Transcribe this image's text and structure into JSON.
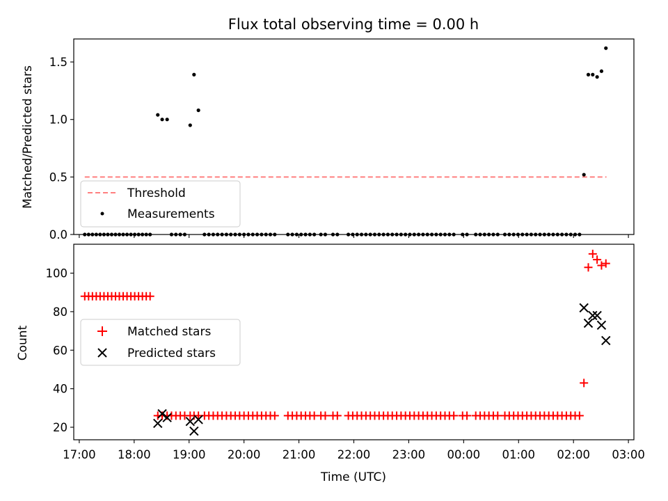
{
  "chart_data": [
    {
      "type": "scatter",
      "title": "Flux total observing time = 0.00 h",
      "xlabel": "",
      "ylabel": "Matched/Predicted stars",
      "xlim": [
        16.9,
        27.1
      ],
      "ylim": [
        0,
        1.7
      ],
      "yticks": [
        0.0,
        0.5,
        1.0,
        1.5
      ],
      "ytick_labels": [
        "0.0",
        "0.5",
        "1.0",
        "1.5"
      ],
      "legend_position": "lower-left",
      "series": [
        {
          "name": "Threshold",
          "kind": "dashed-line",
          "color": "#ff7f7f",
          "x": [
            17.1,
            26.6
          ],
          "y": [
            0.5,
            0.5
          ]
        },
        {
          "name": "Measurements",
          "kind": "points",
          "color": "#000000",
          "x": [
            17.1,
            17.17,
            17.24,
            17.31,
            17.38,
            17.45,
            17.52,
            17.59,
            17.66,
            17.73,
            17.8,
            17.87,
            17.94,
            18.01,
            18.08,
            18.15,
            18.22,
            18.29,
            18.43,
            18.51,
            18.6,
            18.68,
            18.76,
            18.84,
            18.92,
            19.02,
            19.09,
            19.17,
            19.28,
            19.36,
            19.44,
            19.52,
            19.6,
            19.68,
            19.76,
            19.84,
            19.92,
            20.0,
            20.08,
            20.16,
            20.24,
            20.32,
            20.4,
            20.48,
            20.56,
            20.8,
            20.88,
            20.96,
            21.04,
            21.12,
            21.2,
            21.28,
            21.4,
            21.48,
            21.62,
            21.7,
            21.9,
            21.98,
            22.06,
            22.14,
            22.22,
            22.3,
            22.38,
            22.46,
            22.54,
            22.62,
            22.7,
            22.78,
            22.86,
            22.94,
            23.02,
            23.1,
            23.18,
            23.26,
            23.34,
            23.42,
            23.5,
            23.58,
            23.66,
            23.74,
            23.82,
            23.98,
            24.06,
            24.22,
            24.3,
            24.38,
            24.46,
            24.54,
            24.62,
            24.75,
            24.83,
            24.91,
            24.99,
            25.07,
            25.15,
            25.23,
            25.31,
            25.39,
            25.47,
            25.55,
            25.63,
            25.71,
            25.79,
            25.87,
            25.95,
            26.03,
            26.11,
            26.19,
            26.27,
            26.35,
            26.43,
            26.51,
            26.59
          ],
          "y": [
            0,
            0,
            0,
            0,
            0,
            0,
            0,
            0,
            0,
            0,
            0,
            0,
            0,
            0,
            0,
            0,
            0,
            0,
            1.04,
            1.0,
            1.0,
            0,
            0,
            0,
            0,
            0.95,
            1.39,
            1.08,
            0,
            0,
            0,
            0,
            0,
            0,
            0,
            0,
            0,
            0,
            0,
            0,
            0,
            0,
            0,
            0,
            0,
            0,
            0,
            0,
            0,
            0,
            0,
            0,
            0,
            0,
            0,
            0,
            0,
            0,
            0,
            0,
            0,
            0,
            0,
            0,
            0,
            0,
            0,
            0,
            0,
            0,
            0,
            0,
            0,
            0,
            0,
            0,
            0,
            0,
            0,
            0,
            0,
            0,
            0,
            0,
            0,
            0,
            0,
            0,
            0,
            0,
            0,
            0,
            0,
            0,
            0,
            0,
            0,
            0,
            0,
            0,
            0,
            0,
            0,
            0,
            0,
            0,
            0,
            0.52,
            1.39,
            1.39,
            1.37,
            1.42,
            1.62
          ]
        }
      ]
    },
    {
      "type": "scatter",
      "title": "",
      "xlabel": "Time (UTC)",
      "ylabel": "Count",
      "xlim": [
        16.9,
        27.1
      ],
      "ylim": [
        13.5,
        115
      ],
      "yticks": [
        20,
        40,
        60,
        80,
        100
      ],
      "ytick_labels": [
        "20",
        "40",
        "60",
        "80",
        "100"
      ],
      "xticks": [
        17,
        18,
        19,
        20,
        21,
        22,
        23,
        24,
        25,
        26,
        27
      ],
      "xtick_labels": [
        "17:00",
        "18:00",
        "19:00",
        "20:00",
        "21:00",
        "22:00",
        "23:00",
        "00:00",
        "01:00",
        "02:00",
        "03:00"
      ],
      "legend_position": "center-left",
      "series": [
        {
          "name": "Matched stars",
          "marker": "plus",
          "color": "#ff0000",
          "x": [
            17.1,
            17.17,
            17.24,
            17.31,
            17.38,
            17.45,
            17.52,
            17.59,
            17.66,
            17.73,
            17.8,
            17.87,
            17.94,
            18.01,
            18.08,
            18.15,
            18.22,
            18.29,
            18.43,
            18.51,
            18.6,
            18.68,
            18.76,
            18.84,
            18.92,
            19.02,
            19.09,
            19.17,
            19.28,
            19.36,
            19.44,
            19.52,
            19.6,
            19.68,
            19.76,
            19.84,
            19.92,
            20.0,
            20.08,
            20.16,
            20.24,
            20.32,
            20.4,
            20.48,
            20.56,
            20.8,
            20.88,
            20.96,
            21.04,
            21.12,
            21.2,
            21.28,
            21.4,
            21.48,
            21.62,
            21.7,
            21.9,
            21.98,
            22.06,
            22.14,
            22.22,
            22.3,
            22.38,
            22.46,
            22.54,
            22.62,
            22.7,
            22.78,
            22.86,
            22.94,
            23.02,
            23.1,
            23.18,
            23.26,
            23.34,
            23.42,
            23.5,
            23.58,
            23.66,
            23.74,
            23.82,
            23.98,
            24.06,
            24.22,
            24.3,
            24.38,
            24.46,
            24.54,
            24.62,
            24.75,
            24.83,
            24.91,
            24.99,
            25.07,
            25.15,
            25.23,
            25.31,
            25.39,
            25.47,
            25.55,
            25.63,
            25.71,
            25.79,
            25.87,
            25.95,
            26.03,
            26.11,
            26.19,
            26.27,
            26.35,
            26.43,
            26.51,
            26.59
          ],
          "y": [
            88,
            88,
            88,
            88,
            88,
            88,
            88,
            88,
            88,
            88,
            88,
            88,
            88,
            88,
            88,
            88,
            88,
            88,
            26,
            26,
            26,
            26,
            26,
            26,
            26,
            26,
            26,
            26,
            26,
            26,
            26,
            26,
            26,
            26,
            26,
            26,
            26,
            26,
            26,
            26,
            26,
            26,
            26,
            26,
            26,
            26,
            26,
            26,
            26,
            26,
            26,
            26,
            26,
            26,
            26,
            26,
            26,
            26,
            26,
            26,
            26,
            26,
            26,
            26,
            26,
            26,
            26,
            26,
            26,
            26,
            26,
            26,
            26,
            26,
            26,
            26,
            26,
            26,
            26,
            26,
            26,
            26,
            26,
            26,
            26,
            26,
            26,
            26,
            26,
            26,
            26,
            26,
            26,
            26,
            26,
            26,
            26,
            26,
            26,
            26,
            26,
            26,
            26,
            26,
            26,
            26,
            26,
            43,
            103,
            110,
            107,
            104,
            105
          ]
        },
        {
          "name": "Predicted stars",
          "marker": "x",
          "color": "#000000",
          "x": [
            18.43,
            18.51,
            18.6,
            19.02,
            19.09,
            19.17,
            26.19,
            26.27,
            26.35,
            26.43,
            26.51,
            26.59
          ],
          "y": [
            22,
            27,
            25,
            23,
            18,
            24,
            82,
            74,
            78,
            78,
            73,
            65
          ]
        }
      ]
    }
  ]
}
